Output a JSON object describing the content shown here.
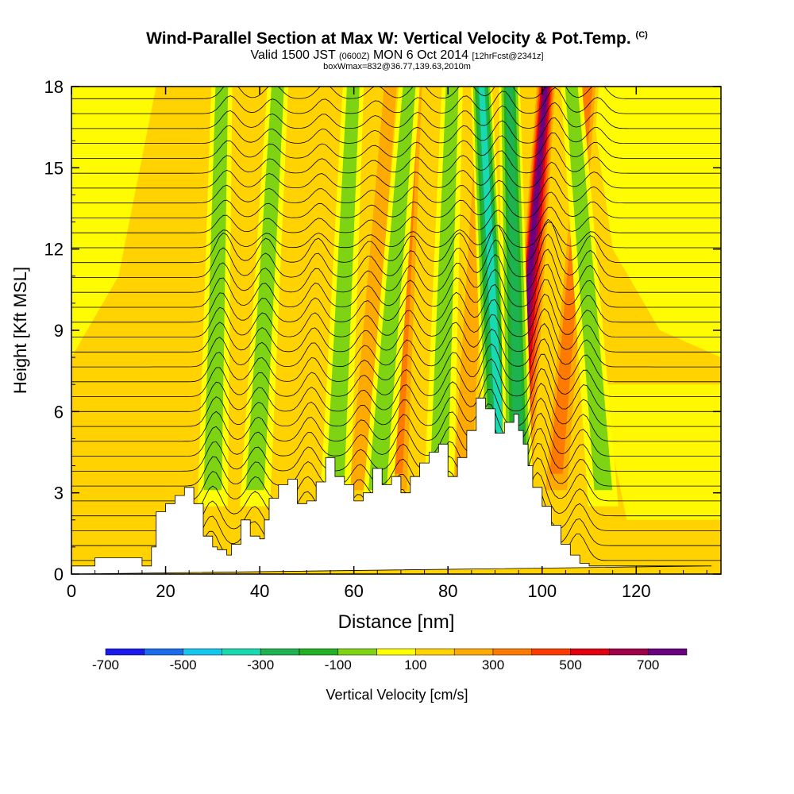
{
  "title": {
    "main": "Wind-Parallel Section at Max W: Vertical Velocity & Pot.Temp.",
    "copyright": "(C)",
    "valid_prefix": "Valid 1500 JST",
    "zulu": "(0600Z)",
    "date": "MON 6 Oct 2014",
    "forecast": "[12hrFcst@2341z]",
    "box_info": "boxWmax=832@36.77,139.63,2010m"
  },
  "colorbar": {
    "label": "Vertical Velocity [cm/s]",
    "tick_labels": [
      "-700",
      "-500",
      "-300",
      "-100",
      "100",
      "300",
      "500",
      "700"
    ],
    "colors": [
      "#1a1aee",
      "#1a6eee",
      "#13c7ef",
      "#19d9b0",
      "#1cb350",
      "#23b023",
      "#7ed312",
      "#ffff00",
      "#ffd200",
      "#ffaa00",
      "#ff7a00",
      "#ff3a00",
      "#e00010",
      "#a0004a",
      "#6a0080"
    ]
  },
  "chart_data": {
    "type": "heatmap",
    "title": "Wind-Parallel Section at Max W: Vertical Velocity & Pot.Temp.",
    "xlabel": "Distance [nm]",
    "ylabel": "Height [Kft MSL]",
    "xlim": [
      0,
      138
    ],
    "ylim": [
      0,
      18
    ],
    "x_ticks": [
      "0",
      "20",
      "40",
      "60",
      "80",
      "100",
      "120"
    ],
    "y_ticks": [
      "0",
      "3",
      "6",
      "9",
      "12",
      "15",
      "18"
    ],
    "terrain": {
      "x": [
        0,
        5,
        5,
        15,
        15,
        17,
        17,
        18,
        18,
        20,
        20,
        22,
        22,
        24,
        24,
        26,
        26,
        28,
        28,
        30,
        30,
        31,
        31,
        33,
        33,
        34,
        34,
        36,
        36,
        38,
        38,
        40,
        40,
        41,
        41,
        42,
        42,
        44,
        44,
        46,
        46,
        48,
        48,
        50,
        50,
        52,
        52,
        54,
        54,
        56,
        56,
        58,
        58,
        60,
        60,
        62,
        62,
        64,
        64,
        66,
        66,
        68,
        68,
        70,
        70,
        72,
        72,
        74,
        74,
        76,
        76,
        78,
        78,
        80,
        80,
        82,
        82,
        84,
        84,
        86,
        86,
        88,
        88,
        90,
        90,
        92,
        92,
        94,
        94,
        95,
        95,
        96,
        96,
        97,
        97,
        98,
        98,
        100,
        100,
        102,
        102,
        104,
        104,
        106,
        106,
        108,
        108,
        110,
        110,
        112,
        112,
        114,
        114,
        116,
        116,
        118,
        118,
        120,
        120,
        122,
        122,
        125,
        125,
        128,
        128,
        130,
        130,
        133,
        133,
        136,
        136,
        138
      ],
      "y": [
        0.3,
        0.3,
        0.6,
        0.6,
        0.3,
        0.3,
        1.0,
        1.0,
        2.3,
        2.3,
        2.6,
        2.6,
        2.9,
        2.9,
        3.2,
        3.2,
        2.6,
        2.6,
        1.4,
        1.4,
        1.0,
        1.0,
        0.9,
        0.9,
        0.7,
        0.7,
        1.1,
        1.1,
        2.0,
        2.0,
        1.4,
        1.4,
        1.3,
        1.3,
        2.0,
        2.0,
        2.8,
        2.8,
        3.3,
        3.3,
        3.5,
        3.5,
        2.6,
        2.6,
        2.7,
        2.7,
        3.4,
        3.4,
        4.3,
        4.3,
        3.6,
        3.6,
        3.3,
        3.3,
        2.7,
        2.7,
        3.0,
        3.0,
        3.9,
        3.9,
        3.3,
        3.3,
        3.6,
        3.6,
        3.0,
        3.0,
        3.6,
        3.6,
        4.1,
        4.1,
        4.5,
        4.5,
        4.8,
        4.8,
        3.6,
        3.6,
        4.3,
        4.3,
        5.3,
        5.3,
        6.5,
        6.5,
        6.1,
        6.1,
        5.2,
        5.2,
        5.6,
        5.6,
        5.9,
        5.9,
        5.3,
        5.3,
        4.8,
        4.8,
        4.0,
        4.0,
        3.2,
        3.2,
        2.5,
        2.5,
        1.8,
        1.8,
        1.1,
        1.1,
        0.7,
        0.7,
        0.4,
        0.4,
        0.3,
        0.3,
        0.3,
        0.3,
        0.3,
        0.3,
        0.3,
        0.3,
        0.3,
        0.3,
        0.3,
        0.3,
        0.3,
        0.3,
        0.3,
        0.3,
        0.3,
        0.3,
        0.3,
        0.3,
        0.3,
        0.3,
        0.3
      ]
    },
    "updraft_bands": [
      {
        "x_bottom": 27,
        "x_top": 33,
        "peak": 60
      },
      {
        "x_bottom": 35,
        "x_top": 42,
        "peak": 80
      },
      {
        "x_bottom": 47,
        "x_top": 54,
        "peak": 90
      },
      {
        "x_bottom": 61,
        "x_top": 68,
        "peak": 120
      },
      {
        "x_bottom": 69,
        "x_top": 73,
        "peak": 260
      },
      {
        "x_bottom": 83,
        "x_top": 88,
        "peak": 200
      },
      {
        "x_bottom": 95,
        "x_top": 101,
        "peak": 650
      },
      {
        "x_bottom": 103,
        "x_top": 110,
        "peak": 280
      }
    ],
    "downdraft_bands": [
      {
        "x_bottom": 30,
        "x_top": 32,
        "peak": -150
      },
      {
        "x_bottom": 39,
        "x_top": 44,
        "peak": -140
      },
      {
        "x_bottom": 56,
        "x_top": 60,
        "peak": -160
      },
      {
        "x_bottom": 65,
        "x_top": 72,
        "peak": -180
      },
      {
        "x_bottom": 78,
        "x_top": 81,
        "peak": -200
      },
      {
        "x_bottom": 91,
        "x_top": 87,
        "peak": -450
      },
      {
        "x_bottom": 95,
        "x_top": 93,
        "peak": -320
      },
      {
        "x_bottom": 113,
        "x_top": 106,
        "peak": -160
      }
    ]
  }
}
